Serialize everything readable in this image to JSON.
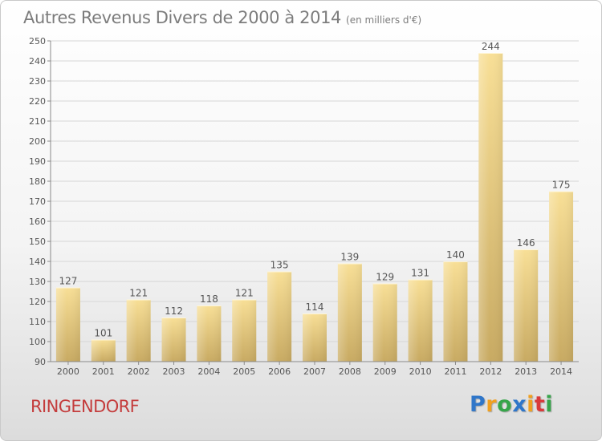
{
  "chart_data": {
    "type": "bar",
    "title": "Autres Revenus Divers de 2000 à 2014",
    "subtitle": "(en milliers d'€)",
    "xlabel": "",
    "ylabel": "",
    "categories": [
      "2000",
      "2001",
      "2002",
      "2003",
      "2004",
      "2005",
      "2006",
      "2007",
      "2008",
      "2009",
      "2010",
      "2011",
      "2012",
      "2013",
      "2014"
    ],
    "values": [
      127,
      101,
      121,
      112,
      118,
      121,
      135,
      114,
      139,
      129,
      131,
      140,
      244,
      146,
      175
    ],
    "ylim": [
      90,
      250
    ],
    "yticks": [
      90,
      100,
      110,
      120,
      130,
      140,
      150,
      160,
      170,
      180,
      190,
      200,
      210,
      220,
      230,
      240,
      250
    ],
    "grid": true,
    "data_labels": true,
    "bar_color": "#e6c87a"
  },
  "commune": "RINGENDORF",
  "logo": {
    "letters": [
      "P",
      "r",
      "o",
      "x",
      "i",
      "t",
      "i"
    ],
    "colors": [
      "#2f76c9",
      "#f0a020",
      "#36a54a",
      "#2f76c9",
      "#f0a020",
      "#d93a3a",
      "#36a54a"
    ]
  }
}
